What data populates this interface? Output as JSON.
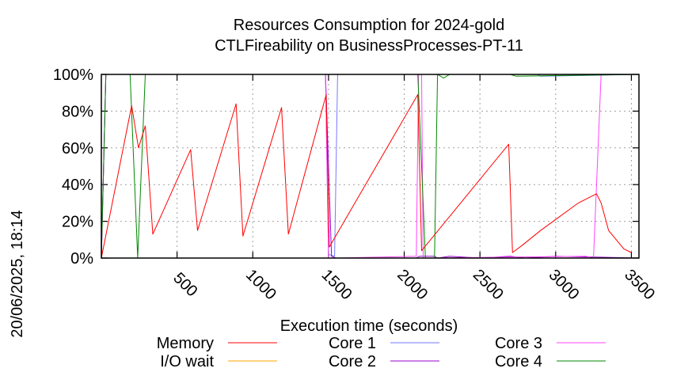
{
  "chart_data": {
    "type": "line",
    "title": "Resources Consumption for 2024-gold",
    "subtitle": "CTLFireability on BusinessProcesses-PT-11",
    "xlabel": "Execution time (seconds)",
    "ylabel": "",
    "side_label": "20/06/2025, 18:14",
    "xlim": [
      0,
      3550
    ],
    "ylim": [
      0,
      100
    ],
    "x_ticks": [
      500,
      1000,
      1500,
      2000,
      2500,
      3000,
      3500
    ],
    "y_ticks": [
      0,
      20,
      40,
      60,
      80,
      100
    ],
    "y_tick_labels": [
      "0%",
      "20%",
      "40%",
      "60%",
      "80%",
      "100%"
    ],
    "grid": true,
    "legend_position": "bottom",
    "series": [
      {
        "name": "Memory",
        "color": "#ff0000",
        "x": [
          0,
          200,
          245,
          290,
          340,
          590,
          635,
          890,
          935,
          1190,
          1235,
          1485,
          1505,
          2090,
          2115,
          2690,
          2715,
          2780,
          2900,
          3000,
          3100,
          3150,
          3270,
          3300,
          3350,
          3450,
          3500
        ],
        "y": [
          0,
          83,
          60,
          72,
          13,
          59,
          15,
          84,
          12,
          82,
          13,
          89,
          6,
          89,
          4,
          62,
          3,
          7,
          15,
          21,
          27,
          30,
          35,
          30,
          15,
          5,
          3
        ]
      },
      {
        "name": "I/O wait",
        "color": "#ffa500",
        "x": [
          0,
          3550
        ],
        "y": [
          0,
          0
        ]
      },
      {
        "name": "Core 1",
        "color": "#7777ff",
        "x": [
          0,
          30,
          1480,
          1500,
          1540,
          1560,
          2880,
          2900,
          3550
        ],
        "y": [
          0,
          100,
          100,
          2,
          1,
          100,
          100,
          99,
          100
        ]
      },
      {
        "name": "Core 2",
        "color": "#9900cc",
        "x": [
          0,
          30,
          1480,
          1520,
          1550,
          2080,
          2100,
          2200,
          2220,
          2300,
          2500,
          2700,
          2800,
          3000,
          3550
        ],
        "y": [
          0,
          100,
          100,
          1,
          0,
          0,
          1,
          1,
          0,
          1,
          0,
          1,
          0,
          1,
          0
        ]
      },
      {
        "name": "Core 3",
        "color": "#ff44ff",
        "x": [
          0,
          30,
          1480,
          1500,
          1550,
          2080,
          2095,
          2115,
          2125,
          2140,
          3200,
          3250,
          3300,
          3550
        ],
        "y": [
          0,
          100,
          100,
          0,
          0,
          1,
          100,
          100,
          0,
          0,
          1,
          0,
          100,
          100
        ]
      },
      {
        "name": "Core 4",
        "color": "#008800",
        "x": [
          0,
          30,
          190,
          240,
          290,
          2080,
          2090,
          2140,
          2155,
          2200,
          2220,
          2260,
          2300,
          2700,
          2740,
          3550
        ],
        "y": [
          0,
          100,
          100,
          0,
          100,
          100,
          100,
          0,
          0,
          0,
          100,
          98,
          100,
          100,
          99,
          100
        ]
      }
    ]
  }
}
